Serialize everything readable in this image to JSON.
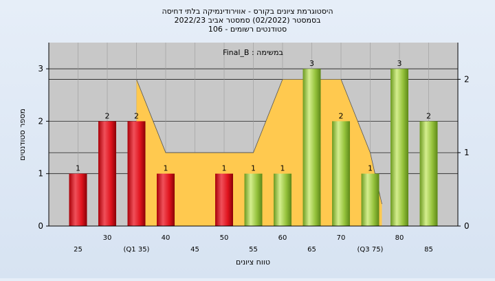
{
  "chart_data": {
    "type": "bar",
    "title_lines": [
      "היסטוגרמת ציונים בקורס - אווירודינמיקה בלתי דחיסה",
      "בסמסטר (02/2022) סמסטר אביב 2022/23",
      "סטודנטים רשומים - 106"
    ],
    "legend_label": "Final_B : במשימה",
    "ylabel": "מספר סטודנטים",
    "xlabel": "טווח ציונים",
    "ylim": [
      0,
      3.5
    ],
    "y2lim": [
      0,
      2.5
    ],
    "yticks": [
      0,
      1,
      2,
      3
    ],
    "y2ticks": [
      0,
      1,
      2
    ],
    "categories": [
      25,
      30,
      35,
      40,
      45,
      50,
      55,
      60,
      65,
      70,
      75,
      80,
      85
    ],
    "tick_labels": [
      "25",
      "30",
      "(Q1 35)",
      "40",
      "45",
      "50",
      "55",
      "60",
      "65",
      "70",
      "(Q3 75)",
      "80",
      "85"
    ],
    "values": [
      1,
      2,
      2,
      1,
      0,
      1,
      1,
      1,
      3,
      2,
      1,
      3,
      2
    ],
    "bar_colors": [
      "red",
      "red",
      "red",
      "red",
      "red",
      "red",
      "green",
      "green",
      "green",
      "green",
      "green",
      "green",
      "green"
    ],
    "distribution_curve": {
      "x": [
        35,
        40,
        45,
        50,
        55,
        60,
        65,
        70,
        75,
        77
      ],
      "y": [
        2.0,
        1.0,
        1.0,
        1.0,
        1.0,
        2.0,
        2.0,
        2.0,
        1.0,
        0.3
      ]
    },
    "colors": {
      "red_bar": "#e0141e",
      "green_bar": "#95c23c",
      "area_fill": "#ffc94f",
      "plot_bg": "#c8c8c8",
      "page_bg": "#dde7f3"
    },
    "grid": true
  }
}
